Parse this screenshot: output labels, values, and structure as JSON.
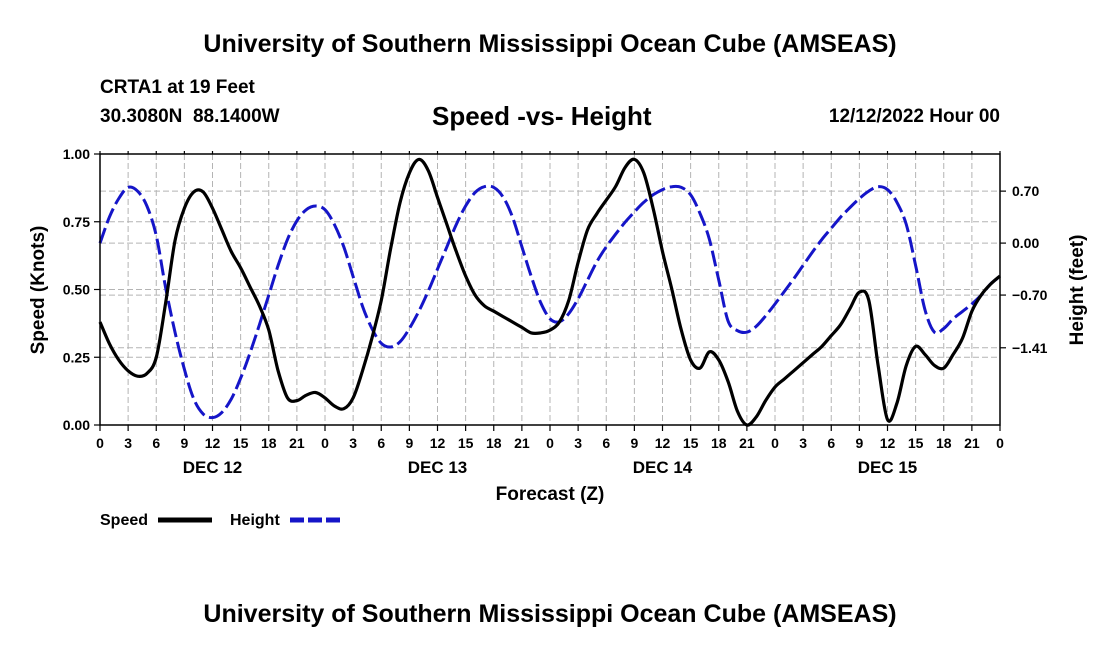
{
  "header": {
    "title": "University of Southern Mississippi Ocean Cube (AMSEAS)",
    "station": "CRTA1 at 19 Feet",
    "coords": "30.3080N  88.1400W",
    "chart_title": "Speed -vs- Height",
    "date": "12/12/2022 Hour 00"
  },
  "footer": {
    "title": "University of Southern Mississippi Ocean Cube (AMSEAS)"
  },
  "colors": {
    "speed": "#000000",
    "height": "#1515c8",
    "grid": "#b4b4b4"
  },
  "chart_data": {
    "type": "line",
    "title": "Speed -vs- Height",
    "xlabel": "Forecast (Z)",
    "ylabel": "Speed (Knots)",
    "ylabel_right": "Height (feet)",
    "xlim": [
      0,
      96
    ],
    "ylim": [
      0,
      1.0
    ],
    "ylim_right": [
      -2.45,
      1.2
    ],
    "x_ticks": [
      0,
      3,
      6,
      9,
      12,
      15,
      18,
      21,
      24,
      27,
      30,
      33,
      36,
      39,
      42,
      45,
      48,
      51,
      54,
      57,
      60,
      63,
      66,
      69,
      72,
      75,
      78,
      81,
      84,
      87,
      90,
      93,
      96
    ],
    "x_tick_labels": [
      "0",
      "3",
      "6",
      "9",
      "12",
      "15",
      "18",
      "21",
      "0",
      "3",
      "6",
      "9",
      "12",
      "15",
      "18",
      "21",
      "0",
      "3",
      "6",
      "9",
      "12",
      "15",
      "18",
      "21",
      "0",
      "3",
      "6",
      "9",
      "12",
      "15",
      "18",
      "21",
      "0"
    ],
    "day_labels": [
      {
        "x": 12,
        "label": "DEC 12"
      },
      {
        "x": 36,
        "label": "DEC 13"
      },
      {
        "x": 60,
        "label": "DEC 14"
      },
      {
        "x": 84,
        "label": "DEC 15"
      }
    ],
    "y_ticks": [
      0,
      0.25,
      0.5,
      0.75,
      1.0
    ],
    "y_tick_labels": [
      "0.00",
      "0.25",
      "0.50",
      "0.75",
      "1.00"
    ],
    "y_ticks_right": [
      0.7,
      0.0,
      -0.7,
      -1.41
    ],
    "y_tick_labels_right": [
      "0.70",
      "0.00",
      "−0.70",
      "−1.41"
    ],
    "legend": [
      {
        "name": "Speed",
        "style": "solid"
      },
      {
        "name": "Height",
        "style": "dashed"
      }
    ],
    "series": [
      {
        "name": "Speed",
        "axis": "left",
        "x": [
          0,
          1,
          2,
          3,
          4,
          5,
          6,
          7,
          8,
          9,
          10,
          11,
          12,
          13,
          14,
          15,
          16,
          17,
          18,
          19,
          20,
          21,
          22,
          23,
          24,
          25,
          26,
          27,
          28,
          29,
          30,
          31,
          32,
          33,
          34,
          35,
          36,
          37,
          38,
          39,
          40,
          41,
          42,
          43,
          44,
          45,
          46,
          47,
          48,
          49,
          50,
          51,
          52,
          53,
          54,
          55,
          56,
          57,
          58,
          59,
          60,
          61,
          62,
          63,
          64,
          65,
          66,
          67,
          68,
          69,
          70,
          71,
          72,
          73,
          74,
          75,
          76,
          77,
          78,
          79,
          80,
          81,
          82,
          83,
          84,
          85,
          86,
          87,
          88,
          89,
          90,
          91,
          92,
          93,
          94,
          95,
          96
        ],
        "values": [
          0.38,
          0.3,
          0.24,
          0.2,
          0.18,
          0.19,
          0.25,
          0.45,
          0.68,
          0.8,
          0.86,
          0.86,
          0.8,
          0.72,
          0.64,
          0.58,
          0.51,
          0.44,
          0.35,
          0.2,
          0.1,
          0.09,
          0.11,
          0.12,
          0.1,
          0.07,
          0.06,
          0.1,
          0.2,
          0.32,
          0.46,
          0.65,
          0.82,
          0.93,
          0.98,
          0.94,
          0.84,
          0.74,
          0.64,
          0.55,
          0.48,
          0.44,
          0.42,
          0.4,
          0.38,
          0.36,
          0.34,
          0.34,
          0.35,
          0.38,
          0.46,
          0.6,
          0.72,
          0.78,
          0.83,
          0.88,
          0.95,
          0.98,
          0.93,
          0.8,
          0.64,
          0.5,
          0.35,
          0.24,
          0.21,
          0.27,
          0.24,
          0.16,
          0.05,
          0.0,
          0.03,
          0.09,
          0.14,
          0.17,
          0.2,
          0.23,
          0.26,
          0.29,
          0.33,
          0.37,
          0.43,
          0.49,
          0.46,
          0.22,
          0.02,
          0.08,
          0.22,
          0.29,
          0.26,
          0.22,
          0.21,
          0.26,
          0.32,
          0.42,
          0.48,
          0.52,
          0.55
        ]
      },
      {
        "name": "Height",
        "axis": "right",
        "x": [
          0,
          1,
          2,
          3,
          4,
          5,
          6,
          7,
          8,
          9,
          10,
          11,
          12,
          13,
          14,
          15,
          16,
          17,
          18,
          19,
          20,
          21,
          22,
          23,
          24,
          25,
          26,
          27,
          28,
          29,
          30,
          31,
          32,
          33,
          34,
          35,
          36,
          37,
          38,
          39,
          40,
          41,
          42,
          43,
          44,
          45,
          46,
          47,
          48,
          49,
          50,
          51,
          52,
          53,
          54,
          55,
          56,
          57,
          58,
          59,
          60,
          61,
          62,
          63,
          64,
          65,
          66,
          67,
          68,
          69,
          70,
          71,
          72,
          73,
          74,
          75,
          76,
          77,
          78,
          79,
          80,
          81,
          82,
          83,
          84,
          85,
          86,
          87,
          88,
          89,
          90,
          91,
          92,
          93,
          94,
          95,
          96
        ],
        "values": [
          0.0,
          0.35,
          0.6,
          0.75,
          0.7,
          0.5,
          0.1,
          -0.6,
          -1.2,
          -1.7,
          -2.1,
          -2.3,
          -2.35,
          -2.28,
          -2.1,
          -1.82,
          -1.48,
          -1.1,
          -0.7,
          -0.3,
          0.05,
          0.3,
          0.45,
          0.5,
          0.45,
          0.25,
          -0.05,
          -0.45,
          -0.85,
          -1.15,
          -1.35,
          -1.4,
          -1.33,
          -1.15,
          -0.92,
          -0.65,
          -0.35,
          -0.05,
          0.25,
          0.5,
          0.68,
          0.76,
          0.75,
          0.62,
          0.35,
          -0.05,
          -0.45,
          -0.8,
          -1.02,
          -1.06,
          -0.95,
          -0.75,
          -0.5,
          -0.25,
          -0.05,
          0.12,
          0.28,
          0.42,
          0.55,
          0.65,
          0.72,
          0.76,
          0.75,
          0.65,
          0.4,
          0.05,
          -0.5,
          -1.05,
          -1.18,
          -1.2,
          -1.12,
          -0.98,
          -0.82,
          -0.65,
          -0.48,
          -0.3,
          -0.12,
          0.05,
          0.2,
          0.35,
          0.48,
          0.6,
          0.7,
          0.76,
          0.72,
          0.55,
          0.25,
          -0.3,
          -0.9,
          -1.2,
          -1.15,
          -1.02,
          -0.92,
          -0.82,
          -0.7,
          -0.55,
          -0.45
        ]
      }
    ]
  }
}
